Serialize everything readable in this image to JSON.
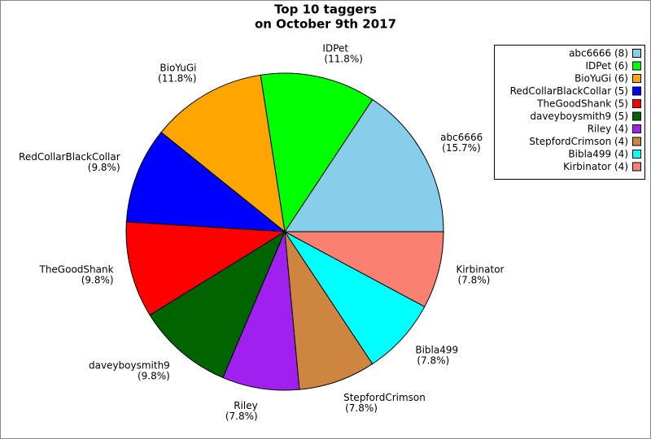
{
  "chart_data": {
    "type": "pie",
    "title": [
      "Top 10 taggers",
      "on October 9th 2017"
    ],
    "categories": [
      "abc6666",
      "IDPet",
      "BioYuGi",
      "RedCollarBlackCollar",
      "TheGoodShank",
      "daveyboysmith9",
      "Riley",
      "StepfordCrimson",
      "Bibla499",
      "Kirbinator"
    ],
    "values": [
      8,
      6,
      6,
      5,
      5,
      5,
      4,
      4,
      4,
      4
    ],
    "value_labels": [
      "(15.7%)",
      "(11.8%)",
      "(11.8%)",
      "(9.8%)",
      "(9.8%)",
      "(9.8%)",
      "(7.8%)",
      "(7.8%)",
      "(7.8%)",
      "(7.8%)"
    ],
    "legend_labels": [
      "abc6666 (8)",
      "IDPet (6)",
      "BioYuGi (6)",
      "RedCollarBlackCollar (5)",
      "TheGoodShank (5)",
      "daveyboysmith9 (5)",
      "Riley (4)",
      "StepfordCrimson (4)",
      "Bibla499 (4)",
      "Kirbinator (4)"
    ],
    "colors": [
      "#87ceeb",
      "#00ff00",
      "#ffa500",
      "#0000ff",
      "#ff0000",
      "#006400",
      "#a020f0",
      "#cd853f",
      "#00ffff",
      "#fa8072"
    ],
    "legend": "upper right"
  }
}
